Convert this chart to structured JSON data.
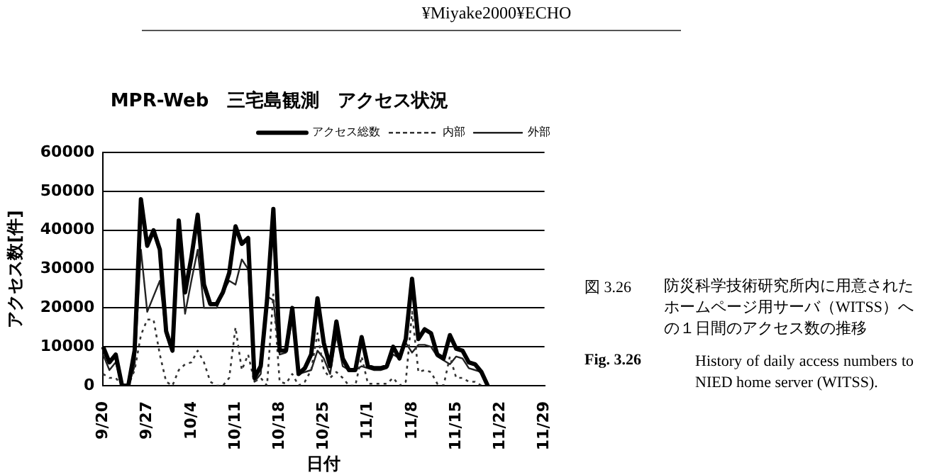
{
  "chart_data": {
    "type": "line",
    "title": "MPR-Web　三宅島観測　アクセス状況",
    "xlabel": "日付",
    "ylabel": "アクセス数[件]",
    "categories": [
      "9/20",
      null,
      null,
      null,
      null,
      null,
      null,
      "9/27",
      null,
      null,
      null,
      null,
      null,
      null,
      "10/4",
      null,
      null,
      null,
      null,
      null,
      null,
      "10/11",
      null,
      null,
      null,
      null,
      null,
      null,
      "10/18",
      null,
      null,
      null,
      null,
      null,
      null,
      "10/25",
      null,
      null,
      null,
      null,
      null,
      null,
      "11/1",
      null,
      null,
      null,
      null,
      null,
      null,
      "11/8",
      null,
      null,
      null,
      null,
      null,
      null,
      "11/15",
      null,
      null,
      null,
      null,
      null,
      null,
      "11/22",
      null,
      null,
      null,
      null,
      null,
      null,
      "11/29"
    ],
    "series": [
      {
        "name": "アクセス総数",
        "color": "#000000",
        "line_style": "solid",
        "values": [
          10000,
          6000,
          8000,
          0,
          0,
          9000,
          48000,
          36000,
          40000,
          35000,
          14000,
          9000,
          42500,
          24000,
          33000,
          44000,
          26000,
          21000,
          21000,
          24000,
          29000,
          41000,
          36500,
          38000,
          2000,
          5000,
          22000,
          45500,
          9000,
          9000,
          20000,
          3000,
          4500,
          8000,
          22500,
          11000,
          5000,
          16500,
          7000,
          4000,
          4000,
          12500,
          5000,
          4500,
          4500,
          5000,
          10000,
          7000,
          12000,
          27500,
          12000,
          14500,
          13500,
          8000,
          7000,
          13000,
          9500,
          9000,
          6000,
          5500,
          3500,
          0,
          null,
          null,
          null,
          null,
          null,
          null,
          null,
          null,
          null
        ]
      },
      {
        "name": "内部",
        "color": "#333333",
        "line_style": "dotted",
        "values": [
          3000,
          2000,
          2000,
          0,
          0,
          4000,
          13000,
          17000,
          17000,
          8000,
          1000,
          0,
          4000,
          5500,
          6000,
          9000,
          6000,
          1000,
          0,
          0,
          2000,
          15000,
          4000,
          8000,
          1000,
          2000,
          0,
          23500,
          1000,
          500,
          3000,
          0,
          1000,
          4000,
          13500,
          4000,
          2000,
          3500,
          2000,
          0,
          0,
          7500,
          500,
          500,
          500,
          500,
          2000,
          0,
          1000,
          19000,
          3500,
          4000,
          3500,
          500,
          0,
          7500,
          2000,
          2000,
          1000,
          1000,
          0,
          0,
          null,
          null,
          null,
          null,
          null,
          null,
          null,
          null,
          null
        ]
      },
      {
        "name": "外部",
        "color": "#222222",
        "line_style": "solid",
        "values": [
          8000,
          4000,
          6000,
          0,
          0,
          5000,
          35000,
          19000,
          23000,
          27000,
          13000,
          9000,
          38000,
          18500,
          27000,
          35000,
          20000,
          20000,
          20000,
          24000,
          27000,
          26000,
          32500,
          30000,
          1000,
          3000,
          23000,
          22000,
          8000,
          8500,
          17000,
          3000,
          3500,
          4000,
          9000,
          7000,
          3000,
          13000,
          5000,
          4000,
          4000,
          5000,
          4500,
          4000,
          4000,
          4500,
          8000,
          7000,
          11000,
          8500,
          10500,
          10500,
          10000,
          7500,
          6500,
          5500,
          7500,
          7000,
          4500,
          4000,
          3500,
          0,
          null,
          null,
          null,
          null,
          null,
          null,
          null,
          null,
          null
        ]
      }
    ],
    "ylim": [
      0,
      60000
    ],
    "yticks": [
      0,
      10000,
      20000,
      30000,
      40000,
      50000,
      60000
    ],
    "grid": "y",
    "legend": "top right",
    "marker": "none",
    "annotations": [
      "¥Miyake2000¥ECHO",
      "図 3.26",
      "防災科学技術研究所内に用意されたホームページ用サーバ（WITSS）への１日間のアクセス数の推移",
      "Fig. 3.26",
      "History of daily access numbers to NIED home server (WITSS)."
    ]
  }
}
